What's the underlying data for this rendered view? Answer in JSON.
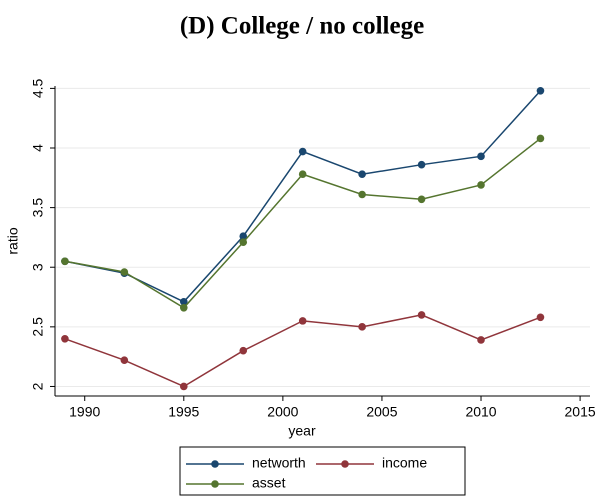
{
  "chart_data": {
    "type": "line",
    "title": "(D) College / no college",
    "x_label": "year",
    "y_label": "ratio",
    "x": [
      1989,
      1992,
      1995,
      1998,
      2001,
      2004,
      2007,
      2010,
      2013
    ],
    "series": [
      {
        "name": "networth",
        "color": "#1a476f",
        "values": [
          3.05,
          2.95,
          2.71,
          3.26,
          3.97,
          3.78,
          3.86,
          3.93,
          4.48
        ]
      },
      {
        "name": "income",
        "color": "#90353b",
        "values": [
          2.4,
          2.22,
          2.0,
          2.3,
          2.55,
          2.5,
          2.6,
          2.39,
          2.58
        ]
      },
      {
        "name": "asset",
        "color": "#55752f",
        "values": [
          3.05,
          2.96,
          2.66,
          3.21,
          3.78,
          3.61,
          3.57,
          3.69,
          4.08
        ]
      }
    ],
    "xlim": [
      1988.5,
      2015.5
    ],
    "xticks": [
      1990,
      1995,
      2000,
      2005,
      2010,
      2015
    ],
    "ylim": [
      1.92,
      4.52
    ],
    "yticks": [
      2,
      2.5,
      3,
      3.5,
      4,
      4.5
    ],
    "grid": true
  }
}
